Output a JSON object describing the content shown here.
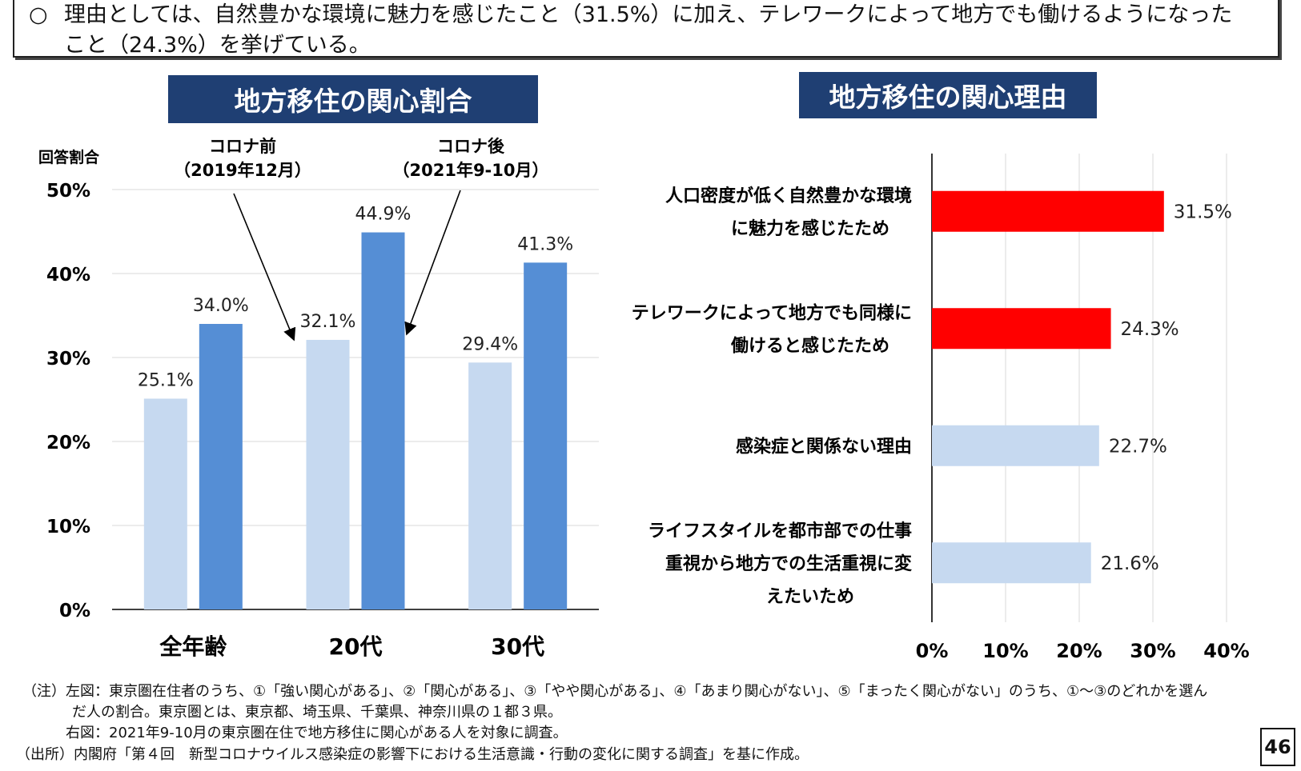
{
  "summary": {
    "bullet": "○",
    "line1": "理由としては、自然豊かな環境に魅力を感じたこと（31.5%）に加え、テレワークによって地方でも働けるようになった",
    "line2": "こと（24.3%）を挙げている。"
  },
  "chart_data": [
    {
      "type": "bar",
      "title": "地方移住の関心割合",
      "ylabel": "回答割合",
      "categories": [
        "全年齢",
        "20代",
        "30代"
      ],
      "ylim": [
        0,
        50
      ],
      "yticks": [
        "0%",
        "10%",
        "20%",
        "30%",
        "40%",
        "50%"
      ],
      "series": [
        {
          "name": "コロナ前（2019年12月）",
          "values": [
            25.1,
            32.1,
            29.4
          ],
          "labels": [
            "25.1%",
            "32.1%",
            "29.4%"
          ],
          "color": "#c6d9f0"
        },
        {
          "name": "コロナ後（2021年9-10月）",
          "values": [
            34.0,
            44.9,
            41.3
          ],
          "labels": [
            "34.0%",
            "44.9%",
            "41.3%"
          ],
          "color": "#558ed5"
        }
      ],
      "annotations": [
        {
          "line1": "コロナ前",
          "line2": "（2019年12月）"
        },
        {
          "line1": "コロナ後",
          "line2": "（2021年9-10月）"
        }
      ],
      "grid": true
    },
    {
      "type": "bar",
      "orientation": "horizontal",
      "title": "地方移住の関心理由",
      "categories": [
        [
          "人口密度が低く自然豊かな環境",
          "に魅力を感じたため"
        ],
        [
          "テレワークによって地方でも同様に",
          "働けると感じたため"
        ],
        [
          "感染症と関係ない理由"
        ],
        [
          "ライフスタイルを都市部での仕事",
          "重視から地方での生活重視に変",
          "えたいため"
        ]
      ],
      "values": [
        31.5,
        24.3,
        22.7,
        21.6
      ],
      "labels": [
        "31.5%",
        "24.3%",
        "22.7%",
        "21.6%"
      ],
      "colors": [
        "#ff0000",
        "#ff0000",
        "#c6d9f0",
        "#c6d9f0"
      ],
      "xlim": [
        0,
        40
      ],
      "xticks": [
        "0%",
        "10%",
        "20%",
        "30%",
        "40%"
      ],
      "grid": true
    }
  ],
  "footnotes": {
    "note1": "（注）左図：東京圏在住者のうち、①「強い関心がある」、②「関心がある」、③「やや関心がある」、④「あまり関心がない」、⑤「まったく関心がない」のうち、①～③のどれかを選ん",
    "note2": "だ人の割合。東京圏とは、東京都、埼玉県、千葉県、神奈川県の１都３県。",
    "note3": "右図：2021年9-10月の東京圏在住で地方移住に関心がある人を対象に調査。",
    "source": "（出所）内閣府「第４回　新型コロナウイルス感染症の影響下における生活意識・行動の変化に関する調査」を基に作成。"
  },
  "page_number": "46"
}
